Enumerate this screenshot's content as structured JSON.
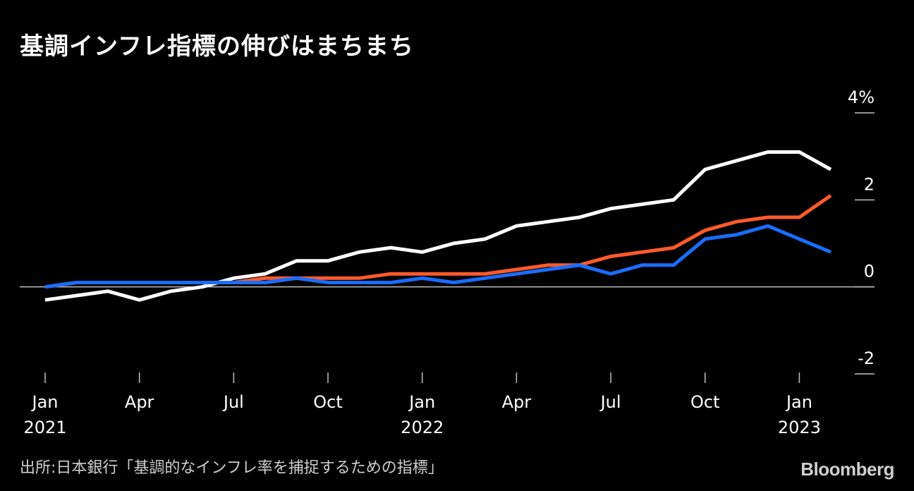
{
  "title": "基調インフレ指標の伸びはまちまち",
  "source": "出所:日本銀行「基調的なインフレ率を捕捉するための指標」",
  "brand": "Bloomberg",
  "colors": {
    "background": "#000000",
    "white_series": "#ffffff",
    "orange_series": "#ff5a2a",
    "blue_series": "#1a6dff",
    "axis": "#bfbfbf"
  },
  "chart_data": {
    "type": "line",
    "title": "基調インフレ指標の伸びはまちまち",
    "xlabel": "",
    "ylabel": "",
    "ylim": [
      -2,
      4
    ],
    "y_ticks": [
      {
        "value": 4,
        "label": "4%"
      },
      {
        "value": 2,
        "label": "2"
      },
      {
        "value": 0,
        "label": "0"
      },
      {
        "value": -2,
        "label": "-2"
      }
    ],
    "x_ticks": [
      {
        "index": 0,
        "month": "Jan",
        "year": "2021"
      },
      {
        "index": 3,
        "month": "Apr",
        "year": ""
      },
      {
        "index": 6,
        "month": "Jul",
        "year": ""
      },
      {
        "index": 9,
        "month": "Oct",
        "year": ""
      },
      {
        "index": 12,
        "month": "Jan",
        "year": "2022"
      },
      {
        "index": 15,
        "month": "Apr",
        "year": ""
      },
      {
        "index": 18,
        "month": "Jul",
        "year": ""
      },
      {
        "index": 21,
        "month": "Oct",
        "year": ""
      },
      {
        "index": 24,
        "month": "Jan",
        "year": "2023"
      }
    ],
    "x": [
      "2021-01",
      "2021-02",
      "2021-03",
      "2021-04",
      "2021-05",
      "2021-06",
      "2021-07",
      "2021-08",
      "2021-09",
      "2021-10",
      "2021-11",
      "2021-12",
      "2022-01",
      "2022-02",
      "2022-03",
      "2022-04",
      "2022-05",
      "2022-06",
      "2022-07",
      "2022-08",
      "2022-09",
      "2022-10",
      "2022-11",
      "2022-12",
      "2023-01",
      "2023-02"
    ],
    "grid": false,
    "legend": "none",
    "series": [
      {
        "color": "#ffffff",
        "values": [
          -0.3,
          -0.2,
          -0.1,
          -0.3,
          -0.1,
          0.0,
          0.2,
          0.3,
          0.6,
          0.6,
          0.8,
          0.9,
          0.8,
          1.0,
          1.1,
          1.4,
          1.5,
          1.6,
          1.8,
          1.9,
          2.0,
          2.7,
          2.9,
          3.1,
          3.1,
          2.7
        ]
      },
      {
        "color": "#ff5a2a",
        "values": [
          0.0,
          0.1,
          0.1,
          0.1,
          0.1,
          0.1,
          0.1,
          0.2,
          0.2,
          0.2,
          0.2,
          0.3,
          0.3,
          0.3,
          0.3,
          0.4,
          0.5,
          0.5,
          0.7,
          0.8,
          0.9,
          1.3,
          1.5,
          1.6,
          1.6,
          2.1
        ]
      },
      {
        "color": "#1a6dff",
        "values": [
          0.0,
          0.1,
          0.1,
          0.1,
          0.1,
          0.1,
          0.1,
          0.1,
          0.2,
          0.1,
          0.1,
          0.1,
          0.2,
          0.1,
          0.2,
          0.3,
          0.4,
          0.5,
          0.3,
          0.5,
          0.5,
          1.1,
          1.2,
          1.4,
          1.1,
          0.8
        ]
      }
    ]
  }
}
